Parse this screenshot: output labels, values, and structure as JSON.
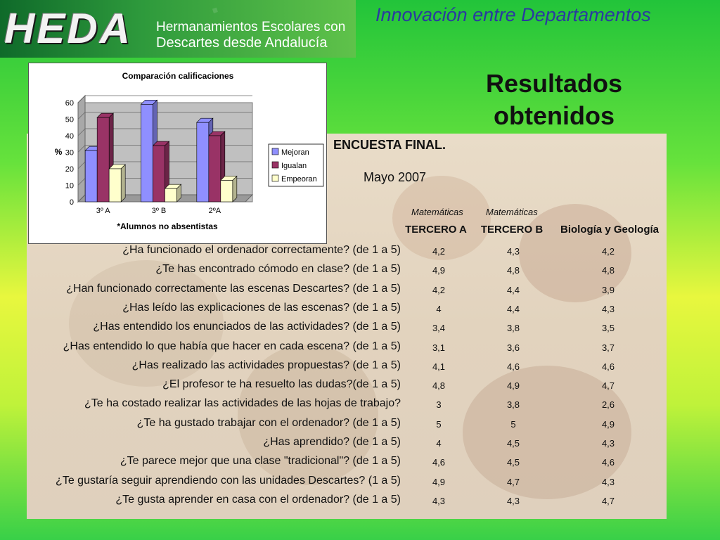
{
  "header": {
    "logo": "HEDA",
    "subtitle_line1": "Hermanamientos Escolares con",
    "subtitle_line2": "Descartes desde Andalucía",
    "tagline": "Innovación entre Departamentos"
  },
  "slide_title_line1": "Resultados",
  "slide_title_line2": "obtenidos",
  "survey": {
    "title": "ENCUESTA FINAL.",
    "date": "Mayo 2007",
    "subjects": [
      "Matemáticas",
      "Matemáticas"
    ],
    "columns": [
      "TERCERO A",
      "TERCERO B",
      "Biología y Geología"
    ],
    "rows": [
      {
        "q": "¿Ha funcionado el ordenador correctamente? (de 1 a 5)",
        "a": "4,2",
        "b": "4,3",
        "c": "4,2"
      },
      {
        "q": "¿Te has encontrado cómodo en clase? (de 1 a 5)",
        "a": "4,9",
        "b": "4,8",
        "c": "4,8"
      },
      {
        "q": "¿Han funcionado correctamente las escenas Descartes? (de 1 a 5)",
        "a": "4,2",
        "b": "4,4",
        "c": "3,9"
      },
      {
        "q": "¿Has leído las explicaciones de las escenas? (de 1 a 5)",
        "a": "4",
        "b": "4,4",
        "c": "4,3"
      },
      {
        "q": "¿Has entendido los enunciados de las actividades? (de 1 a 5)",
        "a": "3,4",
        "b": "3,8",
        "c": "3,5"
      },
      {
        "q": "¿Has entendido lo que había que hacer en cada escena? (de 1 a 5)",
        "a": "3,1",
        "b": "3,6",
        "c": "3,7"
      },
      {
        "q": "¿Has realizado las actividades propuestas? (de 1 a 5)",
        "a": "4,1",
        "b": "4,6",
        "c": "4,6"
      },
      {
        "q": "¿El profesor te ha resuelto las dudas?(de 1 a 5)",
        "a": "4,8",
        "b": "4,9",
        "c": "4,7"
      },
      {
        "q": "¿Te ha costado realizar las actividades de las hojas de trabajo?",
        "a": "3",
        "b": "3,8",
        "c": "2,6"
      },
      {
        "q": "¿Te ha gustado trabajar con el ordenador? (de 1 a 5)",
        "a": "5",
        "b": "5",
        "c": "4,9"
      },
      {
        "q": "¿Has aprendido? (de 1 a 5)",
        "a": "4",
        "b": "4,5",
        "c": "4,3"
      },
      {
        "q": "¿Te parece mejor que una clase \"tradicional\"? (de 1 a 5)",
        "a": "4,6",
        "b": "4,5",
        "c": "4,6"
      },
      {
        "q": "¿Te gustaría seguir aprendiendo con las unidades Descartes? (1 a 5)",
        "a": "4,9",
        "b": "4,7",
        "c": "4,3"
      },
      {
        "q": "¿Te gusta aprender en casa con el ordenador? (de 1 a 5)",
        "a": "4,3",
        "b": "4,3",
        "c": "4,7"
      }
    ]
  },
  "chart_data": {
    "type": "bar",
    "title": "Comparación calificaciones",
    "xlabel": "*Alumnos no absentistas",
    "ylabel": "%",
    "categories": [
      "3º A",
      "3º B",
      "2ºA"
    ],
    "ylim": [
      0,
      60
    ],
    "yticks": [
      "0",
      "10",
      "20",
      "30",
      "40",
      "50",
      "60"
    ],
    "grid": true,
    "legend_position": "right",
    "series": [
      {
        "name": "Mejoran",
        "values": [
          31,
          59,
          48
        ],
        "color": "#8f8fff"
      },
      {
        "name": "Igualan",
        "values": [
          51,
          34,
          40
        ],
        "color": "#993366"
      },
      {
        "name": "Empeoran",
        "values": [
          20,
          8,
          13
        ],
        "color": "#ffffcc"
      }
    ]
  }
}
